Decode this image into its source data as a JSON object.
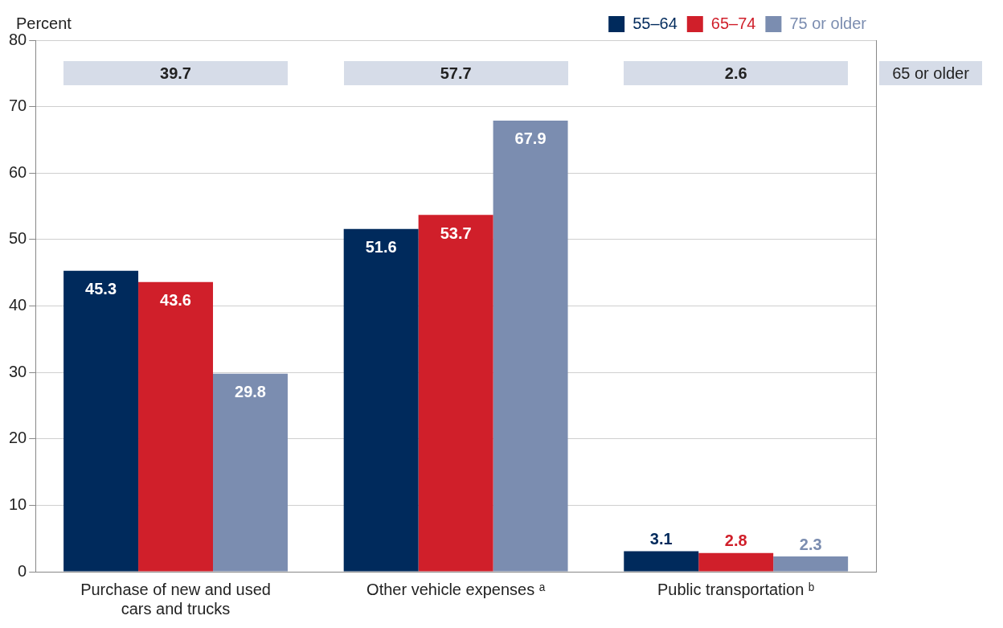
{
  "chart_data": {
    "type": "bar",
    "ylabel": "Percent",
    "categories": [
      "Purchase of new and used cars and trucks",
      "Other vehicle expenses ᵃ",
      "Public transportation ᵇ"
    ],
    "series": [
      {
        "name": "55–64",
        "color": "#002a5c",
        "values": [
          45.3,
          51.6,
          3.1
        ]
      },
      {
        "name": "65–74",
        "color": "#d01f2a",
        "values": [
          43.6,
          53.7,
          2.8
        ]
      },
      {
        "name": "75 or older",
        "color": "#7b8db0",
        "values": [
          29.8,
          67.9,
          2.3
        ]
      }
    ],
    "annotations": [
      "39.7",
      "57.7",
      "2.6",
      "65 or older"
    ],
    "ylim": [
      0,
      80
    ],
    "yticks": [
      0,
      10,
      20,
      30,
      40,
      50,
      60,
      70,
      80
    ],
    "grid": "y",
    "legend": "top right",
    "data_labels": true
  }
}
